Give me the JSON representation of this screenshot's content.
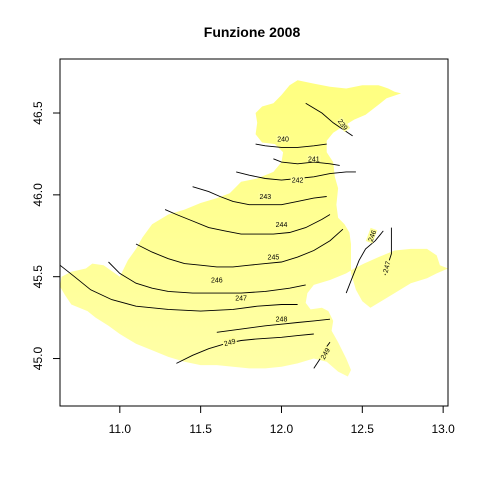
{
  "chart_data": {
    "type": "contour",
    "title": "Funzione 2008",
    "xlabel": "",
    "ylabel": "",
    "xlim": [
      10.63,
      13.03
    ],
    "ylim": [
      44.71,
      46.83
    ],
    "x_ticks": [
      11.0,
      11.5,
      12.0,
      12.5,
      13.0
    ],
    "x_tick_labels": [
      "11.0",
      "11.5",
      "12.0",
      "12.5",
      "13.0"
    ],
    "y_ticks": [
      45.0,
      45.5,
      46.0,
      46.5
    ],
    "y_tick_labels": [
      "45.0",
      "45.5",
      "46.0",
      "46.5"
    ],
    "fill_colors": {
      "low": "#ffff80",
      "high": "#ffffa8"
    },
    "region_outline": [
      [
        11.0,
        45.5
      ],
      [
        10.9,
        45.57
      ],
      [
        10.83,
        45.58
      ],
      [
        10.79,
        45.55
      ],
      [
        10.7,
        45.53
      ],
      [
        10.64,
        45.5
      ],
      [
        10.63,
        45.44
      ],
      [
        10.66,
        45.39
      ],
      [
        10.7,
        45.33
      ],
      [
        10.8,
        45.29
      ],
      [
        10.85,
        45.25
      ],
      [
        10.93,
        45.2
      ],
      [
        11.0,
        45.15
      ],
      [
        11.1,
        45.09
      ],
      [
        11.2,
        45.05
      ],
      [
        11.3,
        45.01
      ],
      [
        11.4,
        44.98
      ],
      [
        11.5,
        44.96
      ],
      [
        11.6,
        44.96
      ],
      [
        11.7,
        44.95
      ],
      [
        11.8,
        44.94
      ],
      [
        11.9,
        44.94
      ],
      [
        12.0,
        44.95
      ],
      [
        12.1,
        44.97
      ],
      [
        12.2,
        45.0
      ],
      [
        12.28,
        44.98
      ],
      [
        12.35,
        44.92
      ],
      [
        12.41,
        44.89
      ],
      [
        12.43,
        44.93
      ],
      [
        12.4,
        45.0
      ],
      [
        12.35,
        45.1
      ],
      [
        12.31,
        45.17
      ],
      [
        12.32,
        45.23
      ],
      [
        12.29,
        45.29
      ],
      [
        12.25,
        45.31
      ],
      [
        12.18,
        45.3
      ],
      [
        12.15,
        45.34
      ],
      [
        12.16,
        45.4
      ],
      [
        12.2,
        45.45
      ],
      [
        12.3,
        45.48
      ],
      [
        12.4,
        45.52
      ],
      [
        12.45,
        45.55
      ],
      [
        12.51,
        45.58
      ],
      [
        12.6,
        45.62
      ],
      [
        12.7,
        45.66
      ],
      [
        12.8,
        45.67
      ],
      [
        12.9,
        45.67
      ],
      [
        12.96,
        45.63
      ],
      [
        12.98,
        45.57
      ],
      [
        13.03,
        45.55
      ],
      [
        12.96,
        45.52
      ],
      [
        12.9,
        45.49
      ],
      [
        12.8,
        45.46
      ],
      [
        12.7,
        45.4
      ],
      [
        12.55,
        45.31
      ],
      [
        12.5,
        45.35
      ],
      [
        12.46,
        45.42
      ],
      [
        12.43,
        45.52
      ],
      [
        12.43,
        45.62
      ],
      [
        12.43,
        45.7
      ],
      [
        12.42,
        45.77
      ],
      [
        12.39,
        45.82
      ],
      [
        12.35,
        45.86
      ],
      [
        12.34,
        45.94
      ],
      [
        12.35,
        46.04
      ],
      [
        12.33,
        46.11
      ],
      [
        12.32,
        46.2
      ],
      [
        12.28,
        46.26
      ],
      [
        12.28,
        46.33
      ],
      [
        12.32,
        46.38
      ],
      [
        12.4,
        46.43
      ],
      [
        12.45,
        46.46
      ],
      [
        12.52,
        46.49
      ],
      [
        12.6,
        46.55
      ],
      [
        12.65,
        46.59
      ],
      [
        12.74,
        46.62
      ],
      [
        12.7,
        46.63
      ],
      [
        12.66,
        46.65
      ],
      [
        12.6,
        46.67
      ],
      [
        12.5,
        46.67
      ],
      [
        12.4,
        46.65
      ],
      [
        12.3,
        46.66
      ],
      [
        12.2,
        46.68
      ],
      [
        12.1,
        46.7
      ],
      [
        12.05,
        46.67
      ],
      [
        12.0,
        46.61
      ],
      [
        11.95,
        46.56
      ],
      [
        11.88,
        46.54
      ],
      [
        11.84,
        46.5
      ],
      [
        11.85,
        46.44
      ],
      [
        11.84,
        46.37
      ],
      [
        11.88,
        46.32
      ],
      [
        11.96,
        46.31
      ],
      [
        12.01,
        46.26
      ],
      [
        12.0,
        46.2
      ],
      [
        11.95,
        46.14
      ],
      [
        11.85,
        46.1
      ],
      [
        11.8,
        46.09
      ],
      [
        11.75,
        46.08
      ],
      [
        11.72,
        46.05
      ],
      [
        11.68,
        46.01
      ],
      [
        11.6,
        45.98
      ],
      [
        11.5,
        45.95
      ],
      [
        11.4,
        45.91
      ],
      [
        11.3,
        45.88
      ],
      [
        11.2,
        45.82
      ],
      [
        11.14,
        45.74
      ],
      [
        11.1,
        45.67
      ],
      [
        11.05,
        45.6
      ]
    ],
    "contours": [
      {
        "level": "239",
        "points": [
          [
            12.15,
            46.56
          ],
          [
            12.25,
            46.5
          ],
          [
            12.32,
            46.44
          ],
          [
            12.38,
            46.4
          ],
          [
            12.44,
            46.36
          ]
        ],
        "label_at": [
          12.38,
          46.43
        ],
        "label_angle": 55
      },
      {
        "level": "240",
        "points": [
          [
            11.84,
            46.31
          ],
          [
            11.9,
            46.3
          ],
          [
            12.0,
            46.29
          ],
          [
            12.1,
            46.29
          ],
          [
            12.2,
            46.3
          ],
          [
            12.28,
            46.31
          ]
        ],
        "label_at": [
          12.01,
          46.34
        ],
        "label_angle": 0
      },
      {
        "level": "241",
        "points": [
          [
            11.95,
            46.22
          ],
          [
            12.0,
            46.2
          ],
          [
            12.1,
            46.19
          ],
          [
            12.2,
            46.2
          ],
          [
            12.3,
            46.19
          ],
          [
            12.36,
            46.18
          ]
        ],
        "label_at": [
          12.2,
          46.22
        ],
        "label_angle": 0
      },
      {
        "level": "242",
        "points": [
          [
            11.72,
            46.14
          ],
          [
            11.8,
            46.12
          ],
          [
            11.9,
            46.1
          ],
          [
            12.0,
            46.09
          ],
          [
            12.1,
            46.1
          ],
          [
            12.2,
            46.11
          ],
          [
            12.3,
            46.13
          ],
          [
            12.4,
            46.14
          ],
          [
            12.46,
            46.14
          ]
        ],
        "label_at": [
          12.1,
          46.09
        ],
        "label_angle": 0
      },
      {
        "level": "243",
        "points": [
          [
            11.45,
            46.05
          ],
          [
            11.55,
            46.02
          ],
          [
            11.62,
            45.99
          ],
          [
            11.7,
            45.96
          ],
          [
            11.8,
            45.94
          ],
          [
            11.9,
            45.94
          ],
          [
            12.0,
            45.94
          ],
          [
            12.1,
            45.96
          ],
          [
            12.2,
            45.98
          ],
          [
            12.28,
            45.99
          ]
        ],
        "label_at": [
          11.9,
          45.99
        ],
        "label_angle": 0
      },
      {
        "level": "244",
        "points": [
          [
            11.28,
            45.91
          ],
          [
            11.35,
            45.88
          ],
          [
            11.45,
            45.84
          ],
          [
            11.55,
            45.8
          ],
          [
            11.65,
            45.78
          ],
          [
            11.75,
            45.76
          ],
          [
            11.85,
            45.76
          ],
          [
            11.95,
            45.76
          ],
          [
            12.05,
            45.77
          ],
          [
            12.15,
            45.8
          ],
          [
            12.25,
            45.85
          ],
          [
            12.3,
            45.88
          ]
        ],
        "label_at": [
          12.0,
          45.82
        ],
        "label_angle": 0
      },
      {
        "level": "245",
        "points": [
          [
            11.1,
            45.7
          ],
          [
            11.2,
            45.65
          ],
          [
            11.3,
            45.61
          ],
          [
            11.4,
            45.58
          ],
          [
            11.5,
            45.57
          ],
          [
            11.6,
            45.56
          ],
          [
            11.7,
            45.56
          ],
          [
            11.8,
            45.57
          ],
          [
            11.9,
            45.58
          ],
          [
            12.0,
            45.59
          ],
          [
            12.1,
            45.62
          ],
          [
            12.2,
            45.66
          ],
          [
            12.3,
            45.72
          ],
          [
            12.38,
            45.79
          ]
        ],
        "label_at": [
          11.95,
          45.62
        ],
        "label_angle": 0
      },
      {
        "level": "246",
        "points": [
          [
            10.93,
            45.59
          ],
          [
            11.0,
            45.52
          ],
          [
            11.1,
            45.46
          ],
          [
            11.2,
            45.43
          ],
          [
            11.3,
            45.41
          ],
          [
            11.45,
            45.4
          ],
          [
            11.6,
            45.4
          ],
          [
            11.75,
            45.4
          ],
          [
            11.9,
            45.41
          ],
          [
            12.05,
            45.43
          ],
          [
            12.15,
            45.45
          ]
        ],
        "label_at": [
          11.6,
          45.48
        ],
        "label_angle": 0
      },
      {
        "level": "247",
        "points": [
          [
            10.63,
            45.57
          ],
          [
            10.72,
            45.5
          ],
          [
            10.82,
            45.42
          ],
          [
            10.95,
            45.36
          ],
          [
            11.1,
            45.32
          ],
          [
            11.3,
            45.3
          ],
          [
            11.5,
            45.29
          ],
          [
            11.7,
            45.3
          ],
          [
            11.85,
            45.32
          ],
          [
            12.0,
            45.33
          ],
          [
            12.1,
            45.33
          ]
        ],
        "label_at": [
          11.75,
          45.37
        ],
        "label_angle": 0
      },
      {
        "level": "248",
        "points": [
          [
            11.6,
            45.16
          ],
          [
            11.75,
            45.18
          ],
          [
            11.9,
            45.2
          ],
          [
            12.0,
            45.21
          ],
          [
            12.1,
            45.22
          ],
          [
            12.2,
            45.23
          ],
          [
            12.3,
            45.24
          ]
        ],
        "label_at": [
          12.0,
          45.24
        ],
        "label_angle": 0
      },
      {
        "level": "249",
        "points": [
          [
            11.35,
            44.97
          ],
          [
            11.45,
            45.02
          ],
          [
            11.55,
            45.06
          ],
          [
            11.65,
            45.09
          ],
          [
            11.75,
            45.11
          ],
          [
            11.85,
            45.12
          ],
          [
            12.0,
            45.13
          ],
          [
            12.1,
            45.14
          ],
          [
            12.2,
            45.15
          ]
        ],
        "label_at": [
          11.68,
          45.1
        ],
        "label_angle": -15
      },
      {
        "level": "246",
        "points": [
          [
            12.4,
            45.4
          ],
          [
            12.44,
            45.5
          ],
          [
            12.48,
            45.6
          ],
          [
            12.52,
            45.67
          ],
          [
            12.58,
            45.72
          ],
          [
            12.63,
            45.78
          ]
        ],
        "label_at": [
          12.56,
          45.75
        ],
        "label_angle": -70
      },
      {
        "level": "247",
        "points": [
          [
            12.64,
            45.51
          ],
          [
            12.66,
            45.58
          ],
          [
            12.68,
            45.64
          ],
          [
            12.68,
            45.72
          ],
          [
            12.68,
            45.8
          ]
        ],
        "label_at": [
          12.65,
          45.56
        ],
        "label_angle": -75
      },
      {
        "level": "249",
        "points": [
          [
            12.2,
            44.94
          ],
          [
            12.24,
            45.0
          ],
          [
            12.27,
            45.06
          ],
          [
            12.3,
            45.1
          ]
        ],
        "label_at": [
          12.27,
          45.03
        ],
        "label_angle": -60
      }
    ]
  }
}
